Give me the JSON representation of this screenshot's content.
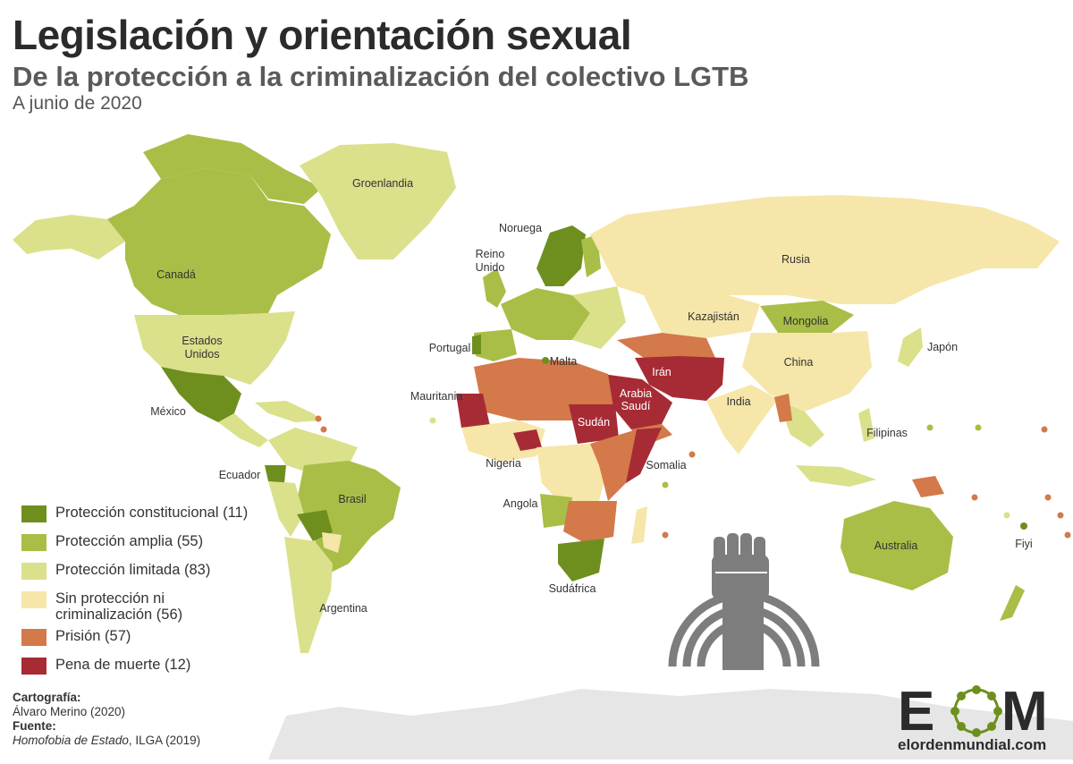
{
  "header": {
    "title": "Legislación y orientación sexual",
    "subtitle": "De la protección a la criminalización del colectivo LGTB",
    "date": "A junio de 2020"
  },
  "colors": {
    "constitutional": "#6e8f1e",
    "broad": "#a9be46",
    "limited": "#dbe08b",
    "none": "#f6e6a9",
    "prison": "#d3794a",
    "death": "#a72b35",
    "nodata": "#e4e4e4",
    "fist": "#7d7d7d"
  },
  "legend": [
    {
      "key": "constitutional",
      "label": "Protección constitucional (11)"
    },
    {
      "key": "broad",
      "label": "Protección amplia (55)"
    },
    {
      "key": "limited",
      "label": "Protección limitada (83)"
    },
    {
      "key": "none",
      "label": "Sin protección ni criminalización (56)"
    },
    {
      "key": "prison",
      "label": "Prisión (57)"
    },
    {
      "key": "death",
      "label": "Pena de muerte (12)"
    }
  ],
  "labels": {
    "groenlandia": "Groenlandia",
    "noruega": "Noruega",
    "reino_unido_1": "Reino",
    "reino_unido_2": "Unido",
    "canada": "Canadá",
    "russia": "Rusia",
    "eeuu_1": "Estados",
    "eeuu_2": "Unidos",
    "kazajistan": "Kazajistán",
    "mongolia": "Mongolia",
    "portugal": "Portugal",
    "malta": "Malta",
    "iran": "Irán",
    "arabia_1": "Arabia",
    "arabia_2": "Saudí",
    "china": "China",
    "japon": "Japón",
    "mexico": "México",
    "mauritania": "Mauritania",
    "india": "India",
    "sudan": "Sudán",
    "filipinas": "Filipinas",
    "nigeria": "Nigeria",
    "somalia": "Somalia",
    "ecuador": "Ecuador",
    "brasil": "Brasil",
    "angola": "Angola",
    "fiyi": "Fiyi",
    "australia": "Australia",
    "sudafrica": "Sudáfrica",
    "argentina": "Argentina"
  },
  "credits": {
    "carto_label": "Cartografía:",
    "carto_value": "Álvaro Merino (2020)",
    "source_label": "Fuente:",
    "source_value": "Homofobia de Estado",
    "source_suffix": ", ILGA (2019)"
  },
  "logo": {
    "letters_1": "E",
    "letters_2": "M",
    "url": "elordenmundial.com"
  }
}
